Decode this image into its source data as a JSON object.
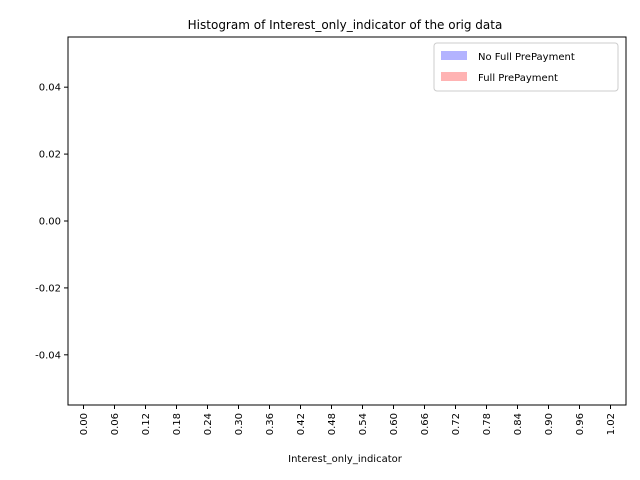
{
  "chart_data": {
    "type": "bar",
    "title": "Histogram of Interest_only_indicator of the orig data",
    "xlabel": "Interest_only_indicator",
    "ylabel": "",
    "categories": [
      "0.00",
      "0.06",
      "0.12",
      "0.18",
      "0.24",
      "0.30",
      "0.36",
      "0.42",
      "0.48",
      "0.54",
      "0.60",
      "0.66",
      "0.72",
      "0.78",
      "0.84",
      "0.90",
      "0.96",
      "1.02"
    ],
    "yticks": [
      "0.04",
      "0.02",
      "0.00",
      "-0.02",
      "-0.04"
    ],
    "ylim": [
      -0.055,
      0.055
    ],
    "series": [
      {
        "name": "No Full PrePayment",
        "color": "#b3b3ff",
        "values": [
          0,
          0,
          0,
          0,
          0,
          0,
          0,
          0,
          0,
          0,
          0,
          0,
          0,
          0,
          0,
          0,
          0,
          0
        ]
      },
      {
        "name": "Full PrePayment",
        "color": "#ffb3b3",
        "values": [
          0,
          0,
          0,
          0,
          0,
          0,
          0,
          0,
          0,
          0,
          0,
          0,
          0,
          0,
          0,
          0,
          0,
          0
        ]
      }
    ],
    "legend_position": "top-right",
    "grid": false
  }
}
